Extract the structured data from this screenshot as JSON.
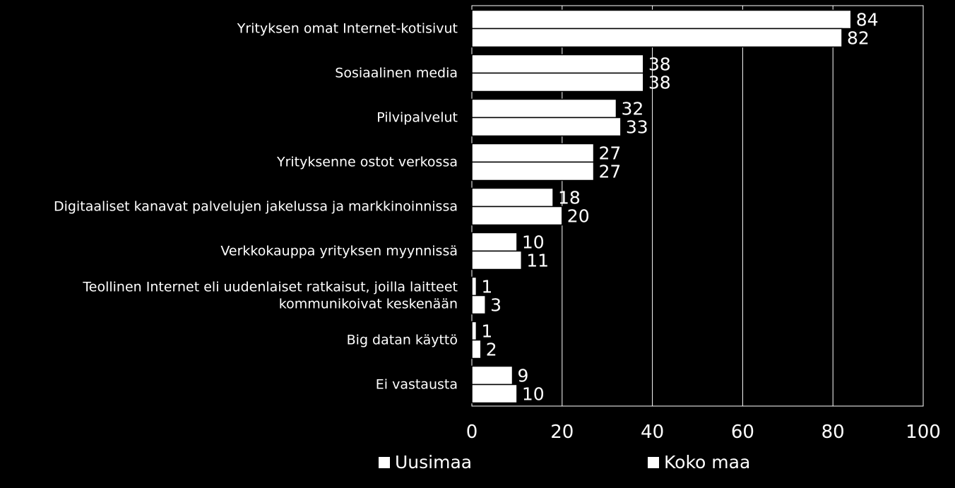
{
  "chart_data": {
    "type": "bar",
    "orientation": "horizontal",
    "categories": [
      [
        "Yrityksen omat Internet-kotisivut"
      ],
      [
        "Sosiaalinen media"
      ],
      [
        "Pilvipalvelut"
      ],
      [
        "Yrityksenne ostot verkossa"
      ],
      [
        "Digitaaliset kanavat palvelujen jakelussa ja markkinoinnissa"
      ],
      [
        "Verkkokauppa yrityksen myynnissä"
      ],
      [
        "Teollinen Internet eli uudenlaiset ratkaisut, joilla laitteet",
        "kommunikoivat keskenään"
      ],
      [
        "Big datan käyttö"
      ],
      [
        "Ei vastausta"
      ]
    ],
    "series": [
      {
        "name": "Uusimaa",
        "values": [
          84,
          38,
          32,
          27,
          18,
          10,
          1,
          1,
          9
        ]
      },
      {
        "name": "Koko maa",
        "values": [
          82,
          38,
          33,
          27,
          20,
          11,
          3,
          2,
          10
        ]
      }
    ],
    "xlim": [
      0,
      100
    ],
    "xticks": [
      0,
      20,
      40,
      60,
      80,
      100
    ],
    "grid": true,
    "legend_position": "bottom",
    "colors": {
      "background": "#000000",
      "bars": "#ffffff",
      "bar_outline": "#000000",
      "grid": "#ffffff"
    }
  }
}
